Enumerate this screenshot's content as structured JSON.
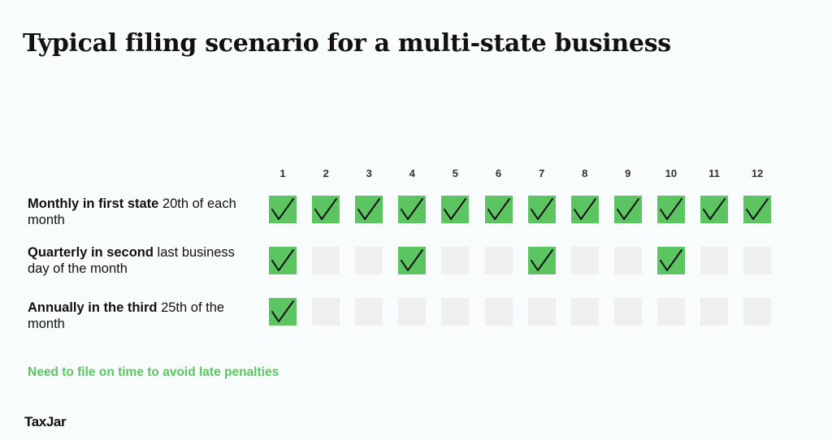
{
  "title": "Typical filing scenario for a multi-state business",
  "chart_data": {
    "type": "table",
    "columns": [
      "1",
      "2",
      "3",
      "4",
      "5",
      "6",
      "7",
      "8",
      "9",
      "10",
      "11",
      "12"
    ],
    "rows": [
      {
        "label_bold": "Monthly in first state",
        "label_rest": "20th of each month",
        "filed": [
          true,
          true,
          true,
          true,
          true,
          true,
          true,
          true,
          true,
          true,
          true,
          true
        ]
      },
      {
        "label_bold": "Quarterly in second",
        "label_rest": "last business day of the month",
        "filed": [
          true,
          false,
          false,
          true,
          false,
          false,
          true,
          false,
          false,
          true,
          false,
          false
        ]
      },
      {
        "label_bold": "Annually in the third",
        "label_rest": "25th of the month",
        "filed": [
          true,
          false,
          false,
          false,
          false,
          false,
          false,
          false,
          false,
          false,
          false,
          false
        ]
      }
    ],
    "colors": {
      "filed": "#5cc561",
      "empty": "#efefef",
      "check": "#111111"
    }
  },
  "note": "Need to file on time to avoid late penalties",
  "logo": "TaxJar"
}
